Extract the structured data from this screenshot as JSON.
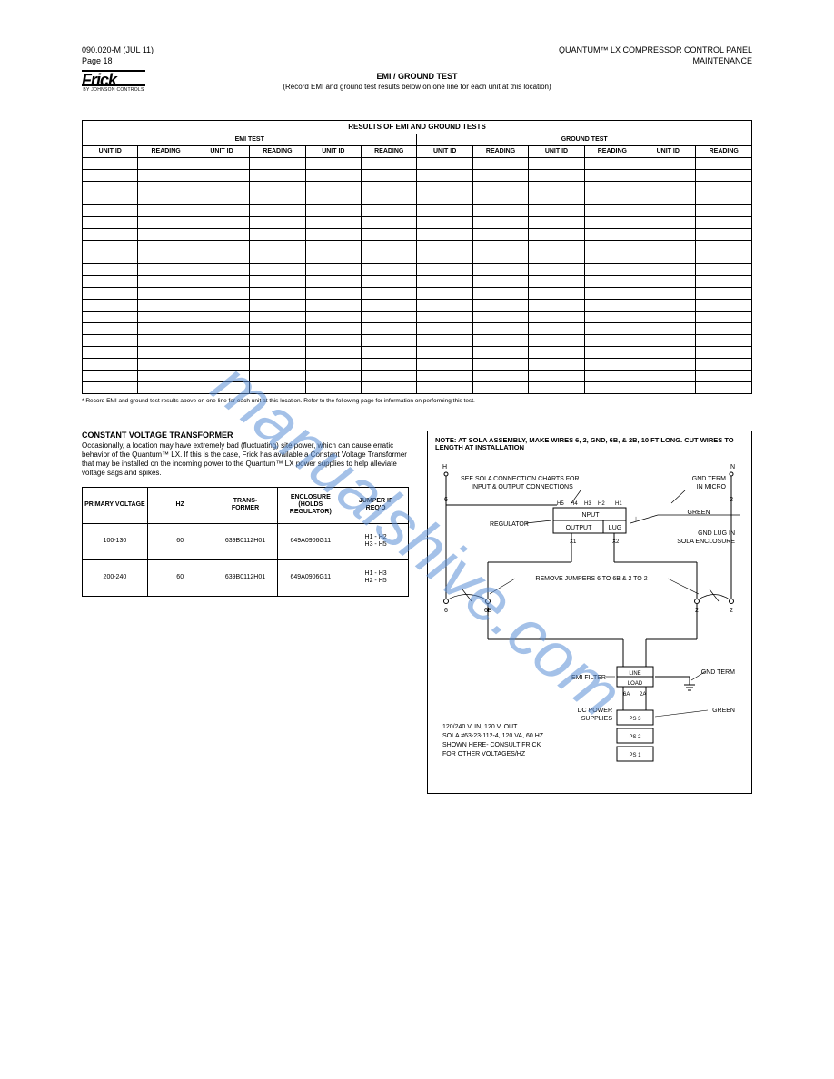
{
  "header": {
    "left_line1": "090.020-M (JUL 11)",
    "left_line2": "Page 18",
    "center_line1": "QUANTUM™ LX COMPRESSOR CONTROL PANEL",
    "center_line2": "MAINTENANCE",
    "logo_sub": "BY JOHNSON CONTROLS",
    "section_title": "EMI / GROUND TEST",
    "section_sub": "(Record EMI and ground test results below on one line for each unit at this location)"
  },
  "main_table": {
    "title": "RESULTS OF EMI AND GROUND TESTS",
    "sub_left": "EMI TEST",
    "sub_right": "GROUND TEST",
    "columns": [
      "UNIT ID",
      "READING",
      "UNIT ID",
      "READING",
      "UNIT ID",
      "READING",
      "UNIT ID",
      "READING",
      "UNIT ID",
      "READING",
      "UNIT ID",
      "READING"
    ],
    "row_count": 20,
    "footnote": "* Record EMI and ground test results above on one line for each unit at this location. Refer to the following page for information on performing this test."
  },
  "left": {
    "title": "CONSTANT VOLTAGE TRANSFORMER",
    "para": "Occasionally, a location may have extremely bad (fluctuating) site power, which can cause erratic behavior of the Quantum™ LX. If this is the case, Frick has available a Constant Voltage Transformer that may be installed on the incoming power to the Quantum™ LX power supplies to help alleviate voltage sags and spikes.",
    "table": {
      "headers": [
        "PRIMARY VOLTAGE",
        "HZ",
        "TRANS-\nFORMER",
        "ENCLOSURE\n(HOLDS\nREGULATOR)",
        "JUMPER IF\nREQ'D"
      ],
      "rows": [
        [
          "100-130",
          "60",
          "639B0112H01",
          "649A0906G11",
          "H1 - H2\nH3 - H5"
        ],
        [
          "200-240",
          "60",
          "639B0112H01",
          "649A0906G11",
          "H1 - H3\nH2 - H5"
        ]
      ]
    }
  },
  "diagram": {
    "note": "NOTE: AT SOLA ASSEMBLY, MAKE WIRES 6, 2, GND, 6B, & 2B, 10 FT LONG. CUT WIRES TO LENGTH AT INSTALLATION",
    "see_sola": "SEE SOLA CONNECTION CHARTS FOR\nINPUT & OUTPUT CONNECTIONS",
    "gnd_term_micro": "GND TERM\nIN MICRO",
    "regulator": "REGULATOR",
    "input": "INPUT",
    "output": "OUTPUT",
    "lug": "LUG",
    "green": "GREEN",
    "gnd_lug": "GND LUG IN\nSOLA ENCLOSURE",
    "remove": "REMOVE JUMPERS 6 TO 6B & 2 TO 2",
    "emi": "EMI FILTER",
    "dc": "DC POWER\nSUPPLIES",
    "gnd_term": "GND TERM",
    "h_labels": [
      "H5",
      "H4",
      "H3",
      "H2",
      "H1"
    ],
    "x_labels": [
      "X1",
      "X2"
    ],
    "term6": "6",
    "term2": "2",
    "term6b": "6B",
    "term6a": "6A",
    "term2a": "2A",
    "H": "H",
    "N": "N",
    "line": "LINE",
    "load": "LOAD",
    "ps": [
      "PS 3",
      "PS 2",
      "PS 1"
    ],
    "bottom": "120/240 V. IN, 120 V. OUT\nSOLA #63-23-112-4, 120 VA, 60 HZ\nSHOWN HERE- CONSULT FRICK\nFOR OTHER VOLTAGES/HZ"
  },
  "watermark": "manualshive.com"
}
